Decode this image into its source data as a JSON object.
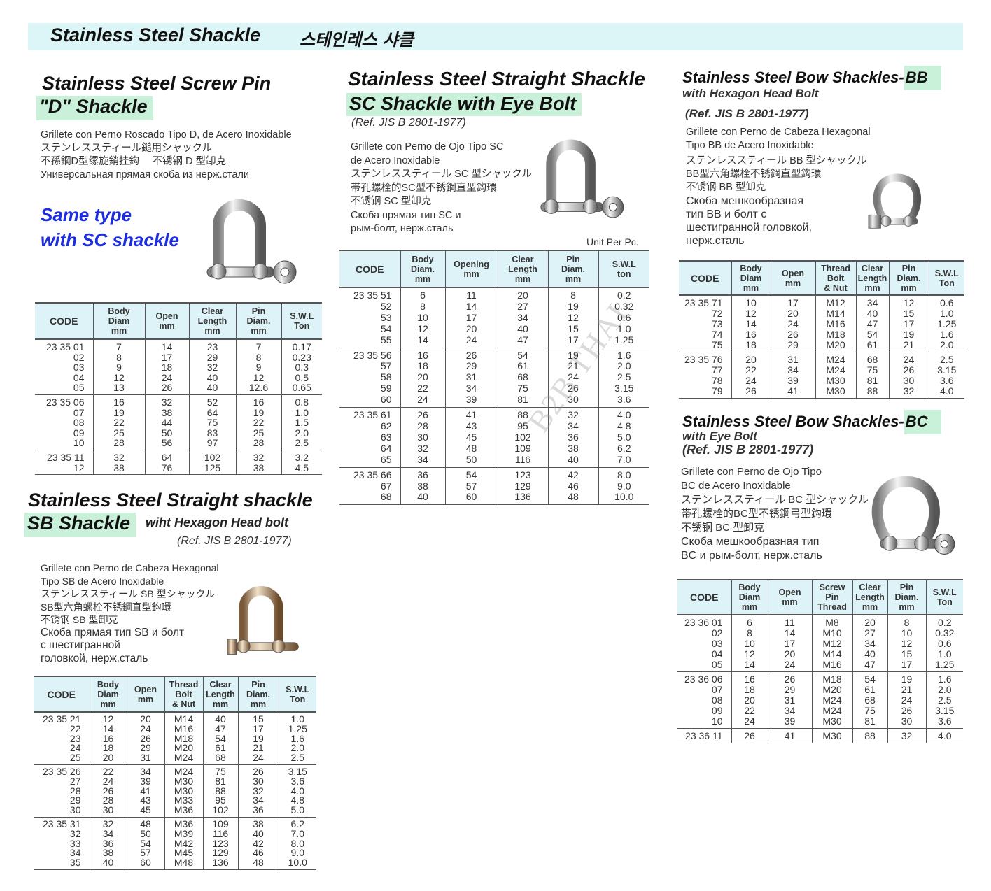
{
  "banner": {
    "title": "Stainless Steel Shackle",
    "title_ko": "스테인레스 샤클"
  },
  "d": {
    "title1": "Stainless Steel Screw Pin",
    "title2": "\"D\" Shackle",
    "desc": [
      "Grillete con Perno Roscado Tipo D, de Acero Inoxidable",
      "ステンレススティール鎚用シャックル",
      "不孫鋼D型缧旋銷挂鈎　 不锈钢 D 型卸克",
      "Универсальная прямая скоба из нерж.стали"
    ],
    "note1": "Same type",
    "note2": "with SC shackle"
  },
  "sc": {
    "title1": "Stainless Steel Straight Shackle",
    "title2": "SC Shackle with Eye Bolt",
    "ref": "(Ref. JIS B 2801-1977)",
    "desc": [
      "Grillete con Perno de Ojo Tipo SC",
      "de Acero Inoxidable",
      "ステンレススティール SC 型シャックル",
      "帯孔螺栓的SC型不锈鋼直型鈎環",
      "不锈钢 SC 型卸克",
      "Скоба прямая тип SC и",
      "рым-болт, нерж.сталь"
    ],
    "unit": "Unit Per Pc.",
    "watermark": "B2B THAI"
  },
  "bb": {
    "title": "Stainless Steel Bow Shackles-",
    "title_hl": "BB",
    "subtitle": "with Hexagon Head Bolt",
    "ref": "(Ref. JIS B 2801-1977)",
    "desc": [
      "Grillete con Perno de Cabeza Hexagonal",
      "Tipo BB de Acero Inoxidable",
      "ステンレススティール BB 型シャックル",
      "BB型六角螺栓不锈鋼直型鈎環",
      "不锈钢 BB 型卸克",
      "Скоба мешкообразная",
      "тип BB и болт с",
      "шестигранной головкой,",
      "нерж.сталь"
    ]
  },
  "bc": {
    "title": "Stainless Steel Bow Shackles-",
    "title_hl": "BC",
    "subtitle": "with Eye Bolt",
    "ref": "(Ref. JIS B 2801-1977)",
    "desc": [
      "Grillete con Perno de Ojo Tipo",
      "BC de Acero Inoxidable",
      "ステンレススティール BC 型シャックル",
      "帯孔螺栓的BC型不锈鋼弓型鈎環",
      "不锈钢 BC 型卸克",
      "Скоба мешкообразная тип",
      "BC и рым-болт, нерж.сталь"
    ]
  },
  "sb": {
    "title": "Stainless Steel  Straight shackle",
    "title2": "SB Shackle",
    "subtitle": "wiht Hexagon Head bolt",
    "ref": "(Ref. JIS B 2801-1977)",
    "desc": [
      "Grillete con Perno de Cabeza Hexagonal",
      "Tipo SB de Acero Inoxidable",
      "ステンレススティール SB 型シャックル",
      "SB型六角螺栓不锈鋼直型鈎環",
      "不锈钢 SB 型卸克",
      "Скоба прямая тип SB и болт",
      "с шестигранной",
      "головкой, нерж.сталь"
    ]
  },
  "tables": {
    "d": {
      "headers": [
        "CODE",
        "Body\nDiam\nmm",
        "Open\nmm",
        "Clear\nLength\nmm",
        "Pin\nDiam.\nmm",
        "S.W.L\nTon"
      ],
      "groups": [
        [
          [
            "23 35 01",
            "7",
            "14",
            "23",
            "7",
            "0.17"
          ],
          [
            "02",
            "8",
            "17",
            "29",
            "8",
            "0.23"
          ],
          [
            "03",
            "9",
            "18",
            "32",
            "9",
            "0.3"
          ],
          [
            "04",
            "12",
            "24",
            "40",
            "12",
            "0.5"
          ],
          [
            "05",
            "13",
            "26",
            "40",
            "12.6",
            "0.65"
          ]
        ],
        [
          [
            "23 35 06",
            "16",
            "32",
            "52",
            "16",
            "0.8"
          ],
          [
            "07",
            "19",
            "38",
            "64",
            "19",
            "1.0"
          ],
          [
            "08",
            "22",
            "44",
            "75",
            "22",
            "1.5"
          ],
          [
            "09",
            "25",
            "50",
            "83",
            "25",
            "2.0"
          ],
          [
            "10",
            "28",
            "56",
            "97",
            "28",
            "2.5"
          ]
        ],
        [
          [
            "23 35 11",
            "32",
            "64",
            "102",
            "32",
            "3.2"
          ],
          [
            "12",
            "38",
            "76",
            "125",
            "38",
            "4.5"
          ]
        ]
      ]
    },
    "sc": {
      "headers": [
        "CODE",
        "Body\nDiam.\nmm",
        "Opening\nmm",
        "Clear\nLength\nmm",
        "Pin\nDiam.\nmm",
        "S.W.L\nton"
      ],
      "groups": [
        [
          [
            "23 35 51",
            "6",
            "11",
            "20",
            "8",
            "0.2"
          ],
          [
            "52",
            "8",
            "14",
            "27",
            "19",
            "0.32"
          ],
          [
            "53",
            "10",
            "17",
            "34",
            "12",
            "0.6"
          ],
          [
            "54",
            "12",
            "20",
            "40",
            "15",
            "1.0"
          ],
          [
            "55",
            "14",
            "24",
            "47",
            "17",
            "1.25"
          ]
        ],
        [
          [
            "23 35 56",
            "16",
            "26",
            "54",
            "19",
            "1.6"
          ],
          [
            "57",
            "18",
            "29",
            "61",
            "21",
            "2.0"
          ],
          [
            "58",
            "20",
            "31",
            "68",
            "24",
            "2.5"
          ],
          [
            "59",
            "22",
            "34",
            "75",
            "26",
            "3.15"
          ],
          [
            "60",
            "24",
            "39",
            "81",
            "30",
            "3.6"
          ]
        ],
        [
          [
            "23 35 61",
            "26",
            "41",
            "88",
            "32",
            "4.0"
          ],
          [
            "62",
            "28",
            "43",
            "95",
            "34",
            "4.8"
          ],
          [
            "63",
            "30",
            "45",
            "102",
            "36",
            "5.0"
          ],
          [
            "64",
            "32",
            "48",
            "109",
            "38",
            "6.2"
          ],
          [
            "65",
            "34",
            "50",
            "116",
            "40",
            "7.0"
          ]
        ],
        [
          [
            "23 35 66",
            "36",
            "54",
            "123",
            "42",
            "8.0"
          ],
          [
            "67",
            "38",
            "57",
            "129",
            "46",
            "9.0"
          ],
          [
            "68",
            "40",
            "60",
            "136",
            "48",
            "10.0"
          ]
        ]
      ]
    },
    "bb": {
      "headers": [
        "CODE",
        "Body\nDiam\nmm",
        "Open\nmm",
        "Thread\nBolt\n& Nut",
        "Clear\nLength\nmm",
        "Pin\nDiam.\nmm",
        "S.W.L\nTon"
      ],
      "groups": [
        [
          [
            "23 35 71",
            "10",
            "17",
            "M12",
            "34",
            "12",
            "0.6"
          ],
          [
            "72",
            "12",
            "20",
            "M14",
            "40",
            "15",
            "1.0"
          ],
          [
            "73",
            "14",
            "24",
            "M16",
            "47",
            "17",
            "1.25"
          ],
          [
            "74",
            "16",
            "26",
            "M18",
            "54",
            "19",
            "1.6"
          ],
          [
            "75",
            "18",
            "29",
            "M20",
            "61",
            "21",
            "2.0"
          ]
        ],
        [
          [
            "23 35 76",
            "20",
            "31",
            "M24",
            "68",
            "24",
            "2.5"
          ],
          [
            "77",
            "22",
            "34",
            "M24",
            "75",
            "26",
            "3.15"
          ],
          [
            "78",
            "24",
            "39",
            "M30",
            "81",
            "30",
            "3.6"
          ],
          [
            "79",
            "26",
            "41",
            "M30",
            "88",
            "32",
            "4.0"
          ]
        ]
      ]
    },
    "bc": {
      "headers": [
        "CODE",
        "Body\nDiam\nmm",
        "Open\nmm",
        "Screw\nPin\nThread",
        "Clear\nLength\nmm",
        "Pin\nDiam.\nmm",
        "S.W.L\nTon"
      ],
      "groups": [
        [
          [
            "23 36 01",
            "6",
            "11",
            "M8",
            "20",
            "8",
            "0.2"
          ],
          [
            "02",
            "8",
            "14",
            "M10",
            "27",
            "10",
            "0.32"
          ],
          [
            "03",
            "10",
            "17",
            "M12",
            "34",
            "12",
            "0.6"
          ],
          [
            "04",
            "12",
            "20",
            "M14",
            "40",
            "15",
            "1.0"
          ],
          [
            "05",
            "14",
            "24",
            "M16",
            "47",
            "17",
            "1.25"
          ]
        ],
        [
          [
            "23 36 06",
            "16",
            "26",
            "M18",
            "54",
            "19",
            "1.6"
          ],
          [
            "07",
            "18",
            "29",
            "M20",
            "61",
            "21",
            "2.0"
          ],
          [
            "08",
            "20",
            "31",
            "M24",
            "68",
            "24",
            "2.5"
          ],
          [
            "09",
            "22",
            "34",
            "M24",
            "75",
            "26",
            "3.15"
          ],
          [
            "10",
            "24",
            "39",
            "M30",
            "81",
            "30",
            "3.6"
          ]
        ],
        [
          [
            "23 36 11",
            "26",
            "41",
            "M30",
            "88",
            "32",
            "4.0"
          ]
        ]
      ]
    },
    "sb": {
      "headers": [
        "CODE",
        "Body\nDiam\nmm",
        "Open\nmm",
        "Thread\nBolt\n& Nut",
        "Clear\nLength\nmm",
        "Pin\nDiam.\nmm",
        "S.W.L\nTon"
      ],
      "groups": [
        [
          [
            "23 35 21",
            "12",
            "20",
            "M14",
            "40",
            "15",
            "1.0"
          ],
          [
            "22",
            "14",
            "24",
            "M16",
            "47",
            "17",
            "1.25"
          ],
          [
            "23",
            "16",
            "26",
            "M18",
            "54",
            "19",
            "1.6"
          ],
          [
            "24",
            "18",
            "29",
            "M20",
            "61",
            "21",
            "2.0"
          ],
          [
            "25",
            "20",
            "31",
            "M24",
            "68",
            "24",
            "2.5"
          ]
        ],
        [
          [
            "23 35 26",
            "22",
            "34",
            "M24",
            "75",
            "26",
            "3.15"
          ],
          [
            "27",
            "24",
            "39",
            "M30",
            "81",
            "30",
            "3.6"
          ],
          [
            "28",
            "26",
            "41",
            "M30",
            "88",
            "32",
            "4.0"
          ],
          [
            "29",
            "28",
            "43",
            "M33",
            "95",
            "34",
            "4.8"
          ],
          [
            "30",
            "30",
            "45",
            "M36",
            "102",
            "36",
            "5.0"
          ]
        ],
        [
          [
            "23 35 31",
            "32",
            "48",
            "M36",
            "109",
            "38",
            "6.2"
          ],
          [
            "32",
            "34",
            "50",
            "M39",
            "116",
            "40",
            "7.0"
          ],
          [
            "33",
            "36",
            "54",
            "M42",
            "123",
            "42",
            "8.0"
          ],
          [
            "34",
            "38",
            "57",
            "M45",
            "129",
            "46",
            "9.0"
          ],
          [
            "35",
            "40",
            "60",
            "M48",
            "136",
            "48",
            "10.0"
          ]
        ]
      ]
    }
  },
  "colors": {
    "banner": "#dcf5f7",
    "highlight": "#c9f1d9",
    "table_header": "#ddf3f8",
    "note": "#1c2ee0"
  }
}
